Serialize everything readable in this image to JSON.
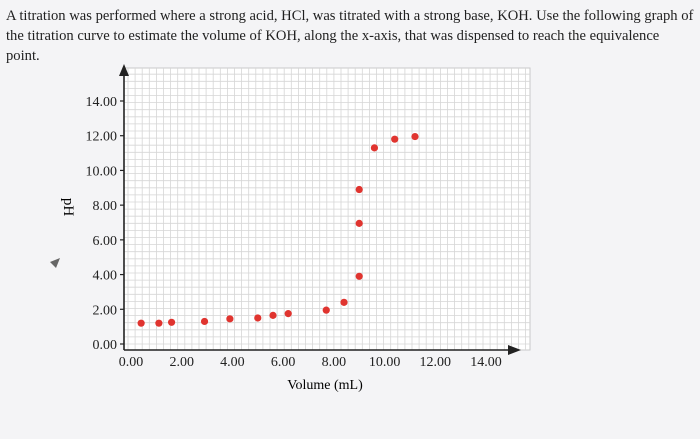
{
  "question": {
    "text": "A titration was performed where a strong acid, HCl, was titrated with a strong base, KOH. Use the following graph of the titration curve to estimate the volume of KOH, along the x-axis, that was dispensed to reach the equivalence point."
  },
  "chart_data": {
    "type": "scatter",
    "title": "",
    "xlabel": "Volume (mL)",
    "ylabel": "pH",
    "xlim": [
      0,
      14
    ],
    "ylim": [
      0,
      14
    ],
    "grid": true,
    "xticks": [
      "0.00",
      "2.00",
      "4.00",
      "6.00",
      "8.00",
      "10.00",
      "12.00",
      "14.00"
    ],
    "yticks": [
      "0.00",
      "2.00",
      "4.00",
      "6.00",
      "8.00",
      "10.00",
      "12.00",
      "14.00"
    ],
    "marker_color": "#e0342f",
    "series": [
      {
        "points": [
          {
            "x": 0.4,
            "y": 1.2
          },
          {
            "x": 1.1,
            "y": 1.2
          },
          {
            "x": 1.6,
            "y": 1.25
          },
          {
            "x": 2.9,
            "y": 1.3
          },
          {
            "x": 3.9,
            "y": 1.45
          },
          {
            "x": 5.0,
            "y": 1.5
          },
          {
            "x": 5.6,
            "y": 1.65
          },
          {
            "x": 6.2,
            "y": 1.75
          },
          {
            "x": 7.7,
            "y": 1.95
          },
          {
            "x": 8.4,
            "y": 2.4
          },
          {
            "x": 9.0,
            "y": 3.9
          },
          {
            "x": 9.0,
            "y": 6.95
          },
          {
            "x": 9.0,
            "y": 8.9
          },
          {
            "x": 9.6,
            "y": 11.3
          },
          {
            "x": 10.4,
            "y": 11.8
          },
          {
            "x": 11.2,
            "y": 11.95
          }
        ]
      }
    ]
  }
}
